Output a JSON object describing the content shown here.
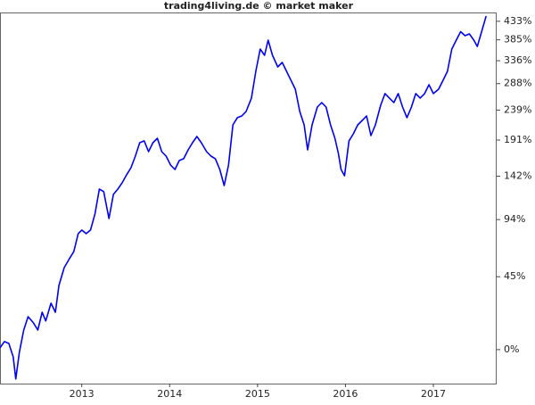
{
  "chart_data": {
    "type": "line",
    "title": "trading4living.de © market maker",
    "x": [
      2012.07,
      2012.12,
      2012.17,
      2012.22,
      2012.25,
      2012.29,
      2012.34,
      2012.39,
      2012.45,
      2012.5,
      2012.55,
      2012.59,
      2012.65,
      2012.7,
      2012.74,
      2012.8,
      2012.86,
      2012.91,
      2012.96,
      2013.0,
      2013.05,
      2013.1,
      2013.15,
      2013.2,
      2013.25,
      2013.31,
      2013.36,
      2013.41,
      2013.46,
      2013.51,
      2013.56,
      2013.61,
      2013.66,
      2013.71,
      2013.76,
      2013.81,
      2013.86,
      2013.91,
      2013.96,
      2014.01,
      2014.06,
      2014.11,
      2014.16,
      2014.21,
      2014.26,
      2014.31,
      2014.36,
      2014.42,
      2014.47,
      2014.52,
      2014.57,
      2014.62,
      2014.67,
      2014.72,
      2014.77,
      2014.82,
      2014.87,
      2014.93,
      2014.98,
      2015.03,
      2015.08,
      2015.12,
      2015.17,
      2015.23,
      2015.28,
      2015.33,
      2015.38,
      2015.43,
      2015.48,
      2015.53,
      2015.57,
      2015.62,
      2015.68,
      2015.73,
      2015.78,
      2015.83,
      2015.88,
      2015.92,
      2015.95,
      2015.99,
      2016.04,
      2016.09,
      2016.14,
      2016.19,
      2016.24,
      2016.29,
      2016.34,
      2016.4,
      2016.45,
      2016.5,
      2016.55,
      2016.6,
      2016.65,
      2016.7,
      2016.75,
      2016.8,
      2016.85,
      2016.9,
      2016.95,
      2017.0,
      2017.06,
      2017.11,
      2017.16,
      2017.21,
      2017.26,
      2017.31,
      2017.36,
      2017.41,
      2017.46,
      2017.5,
      2017.6
    ],
    "values": [
      0.9,
      4.2,
      3.2,
      -3.6,
      -13.9,
      -1.4,
      10.5,
      18.3,
      14.6,
      10.5,
      21.0,
      15.7,
      26.7,
      21.0,
      38.7,
      51.9,
      59.0,
      64.9,
      80.6,
      83.9,
      80.6,
      83.9,
      99.6,
      126.6,
      123.7,
      95.0,
      120.6,
      126.6,
      134.0,
      143.8,
      152.7,
      168.1,
      187.1,
      189.8,
      174.3,
      187.1,
      193.6,
      174.3,
      168.1,
      156.2,
      150.4,
      162.2,
      164.6,
      176.8,
      187.1,
      196.3,
      187.1,
      174.3,
      168.1,
      164.6,
      150.4,
      130.8,
      156.2,
      214.4,
      226.1,
      229.0,
      236.6,
      260.4,
      313.0,
      362.6,
      348.2,
      384.1,
      348.2,
      322.5,
      332.2,
      313.0,
      294.6,
      277.0,
      236.6,
      214.4,
      176.8,
      214.4,
      244.3,
      252.2,
      244.3,
      214.4,
      193.6,
      171.8,
      150.4,
      142.6,
      189.8,
      200.4,
      214.4,
      221.6,
      229.0,
      197.7,
      214.4,
      247.4,
      268.7,
      260.4,
      252.2,
      268.7,
      244.3,
      226.1,
      244.3,
      268.7,
      260.4,
      268.7,
      285.7,
      268.7,
      277.0,
      294.6,
      313.0,
      362.6,
      384.1,
      405.6,
      395.3,
      399.8,
      384.1,
      368.8,
      447.4
    ],
    "xlim": [
      2012.07,
      2017.72
    ],
    "xticks": [
      2013,
      2014,
      2015,
      2016,
      2017
    ],
    "ylim": [
      -15.9,
      457.5
    ],
    "yticks": [
      {
        "value": 0,
        "label": "0%"
      },
      {
        "value": 45,
        "label": "45%"
      },
      {
        "value": 94,
        "label": "94%"
      },
      {
        "value": 142,
        "label": "142%"
      },
      {
        "value": 191,
        "label": "191%"
      },
      {
        "value": 239,
        "label": "239%"
      },
      {
        "value": 288,
        "label": "288%"
      },
      {
        "value": 336,
        "label": "336%"
      },
      {
        "value": 385,
        "label": "385%"
      },
      {
        "value": 433,
        "label": "433%"
      }
    ],
    "log_scale": true,
    "color": "#0000ee"
  }
}
